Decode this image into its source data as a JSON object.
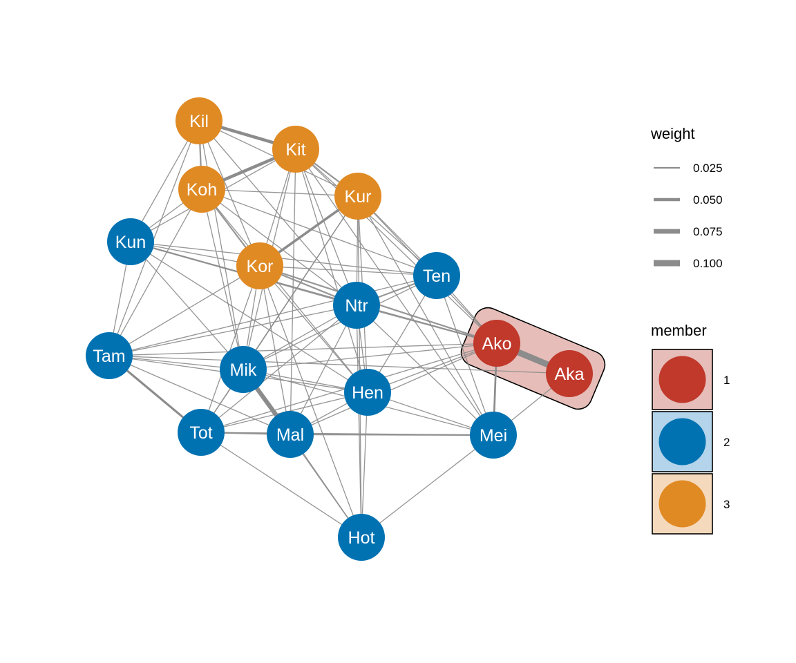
{
  "colors": {
    "community_1": "#C0392B",
    "community_2": "#0072B2",
    "community_3": "#E08A24",
    "hull_fill_1": "#E6BDB8",
    "hull_fill_2": "#B3D4EA",
    "hull_fill_3": "#F5D9BC",
    "edge": "#8C8C8C",
    "node_text": "#FFFFFF"
  },
  "nodes": [
    {
      "id": "Kil",
      "label": "Kil",
      "member": 3
    },
    {
      "id": "Kit",
      "label": "Kit",
      "member": 3
    },
    {
      "id": "Koh",
      "label": "Koh",
      "member": 3
    },
    {
      "id": "Kur",
      "label": "Kur",
      "member": 3
    },
    {
      "id": "Kun",
      "label": "Kun",
      "member": 2
    },
    {
      "id": "Kor",
      "label": "Kor",
      "member": 3
    },
    {
      "id": "Ten",
      "label": "Ten",
      "member": 2
    },
    {
      "id": "Ntr",
      "label": "Ntr",
      "member": 2
    },
    {
      "id": "Ako",
      "label": "Ako",
      "member": 1
    },
    {
      "id": "Aka",
      "label": "Aka",
      "member": 1
    },
    {
      "id": "Tam",
      "label": "Tam",
      "member": 2
    },
    {
      "id": "Mik",
      "label": "Mik",
      "member": 2
    },
    {
      "id": "Hen",
      "label": "Hen",
      "member": 2
    },
    {
      "id": "Tot",
      "label": "Tot",
      "member": 2
    },
    {
      "id": "Mal",
      "label": "Mal",
      "member": 2
    },
    {
      "id": "Mei",
      "label": "Mei",
      "member": 2
    },
    {
      "id": "Hot",
      "label": "Hot",
      "member": 2
    }
  ],
  "edges": [
    {
      "source": "Kil",
      "target": "Kit",
      "weight": 0.05
    },
    {
      "source": "Kil",
      "target": "Koh",
      "weight": 0.025
    },
    {
      "source": "Kil",
      "target": "Kun",
      "weight": 0.015
    },
    {
      "source": "Kil",
      "target": "Kor",
      "weight": 0.015
    },
    {
      "source": "Kil",
      "target": "Kur",
      "weight": 0.015
    },
    {
      "source": "Kil",
      "target": "Ntr",
      "weight": 0.015
    },
    {
      "source": "Kil",
      "target": "Tam",
      "weight": 0.015
    },
    {
      "source": "Kil",
      "target": "Mik",
      "weight": 0.015
    },
    {
      "source": "Kit",
      "target": "Koh",
      "weight": 0.05
    },
    {
      "source": "Kit",
      "target": "Kur",
      "weight": 0.025
    },
    {
      "source": "Kit",
      "target": "Kor",
      "weight": 0.015
    },
    {
      "source": "Kit",
      "target": "Kun",
      "weight": 0.015
    },
    {
      "source": "Kit",
      "target": "Ntr",
      "weight": 0.015
    },
    {
      "source": "Kit",
      "target": "Ten",
      "weight": 0.015
    },
    {
      "source": "Kit",
      "target": "Hen",
      "weight": 0.015
    },
    {
      "source": "Kit",
      "target": "Mik",
      "weight": 0.015
    },
    {
      "source": "Kit",
      "target": "Mal",
      "weight": 0.015
    },
    {
      "source": "Kit",
      "target": "Mei",
      "weight": 0.015
    },
    {
      "source": "Kit",
      "target": "Ako",
      "weight": 0.015
    },
    {
      "source": "Koh",
      "target": "Kun",
      "weight": 0.015
    },
    {
      "source": "Koh",
      "target": "Kor",
      "weight": 0.025
    },
    {
      "source": "Koh",
      "target": "Kur",
      "weight": 0.015
    },
    {
      "source": "Koh",
      "target": "Ntr",
      "weight": 0.015
    },
    {
      "source": "Koh",
      "target": "Mik",
      "weight": 0.015
    },
    {
      "source": "Koh",
      "target": "Hen",
      "weight": 0.015
    },
    {
      "source": "Koh",
      "target": "Ten",
      "weight": 0.015
    },
    {
      "source": "Koh",
      "target": "Tam",
      "weight": 0.015
    },
    {
      "source": "Kur",
      "target": "Kor",
      "weight": 0.04
    },
    {
      "source": "Kur",
      "target": "Ten",
      "weight": 0.015
    },
    {
      "source": "Kur",
      "target": "Ntr",
      "weight": 0.015
    },
    {
      "source": "Kur",
      "target": "Hen",
      "weight": 0.015
    },
    {
      "source": "Kur",
      "target": "Mik",
      "weight": 0.015
    },
    {
      "source": "Kur",
      "target": "Mei",
      "weight": 0.015
    },
    {
      "source": "Kur",
      "target": "Tot",
      "weight": 0.015
    },
    {
      "source": "Kur",
      "target": "Ako",
      "weight": 0.015
    },
    {
      "source": "Kur",
      "target": "Hot",
      "weight": 0.015
    },
    {
      "source": "Kun",
      "target": "Kor",
      "weight": 0.015
    },
    {
      "source": "Kun",
      "target": "Ntr",
      "weight": 0.025
    },
    {
      "source": "Kun",
      "target": "Ten",
      "weight": 0.015
    },
    {
      "source": "Kun",
      "target": "Tam",
      "weight": 0.015
    },
    {
      "source": "Kun",
      "target": "Mik",
      "weight": 0.015
    },
    {
      "source": "Kun",
      "target": "Hen",
      "weight": 0.015
    },
    {
      "source": "Kun",
      "target": "Ako",
      "weight": 0.015
    },
    {
      "source": "Kor",
      "target": "Ntr",
      "weight": 0.025
    },
    {
      "source": "Kor",
      "target": "Ten",
      "weight": 0.015
    },
    {
      "source": "Kor",
      "target": "Tam",
      "weight": 0.015
    },
    {
      "source": "Kor",
      "target": "Mik",
      "weight": 0.015
    },
    {
      "source": "Kor",
      "target": "Hen",
      "weight": 0.015
    },
    {
      "source": "Kor",
      "target": "Mal",
      "weight": 0.015
    },
    {
      "source": "Kor",
      "target": "Ako",
      "weight": 0.025
    },
    {
      "source": "Kor",
      "target": "Tot",
      "weight": 0.015
    },
    {
      "source": "Kor",
      "target": "Hot",
      "weight": 0.015
    },
    {
      "source": "Ten",
      "target": "Ntr",
      "weight": 0.025
    },
    {
      "source": "Ten",
      "target": "Mik",
      "weight": 0.015
    },
    {
      "source": "Ten",
      "target": "Hen",
      "weight": 0.015
    },
    {
      "source": "Ten",
      "target": "Mei",
      "weight": 0.015
    },
    {
      "source": "Ten",
      "target": "Ako",
      "weight": 0.015
    },
    {
      "source": "Ten",
      "target": "Tam",
      "weight": 0.015
    },
    {
      "source": "Ntr",
      "target": "Ako",
      "weight": 0.025
    },
    {
      "source": "Ntr",
      "target": "Hen",
      "weight": 0.015
    },
    {
      "source": "Ntr",
      "target": "Mik",
      "weight": 0.015
    },
    {
      "source": "Ntr",
      "target": "Mal",
      "weight": 0.015
    },
    {
      "source": "Ntr",
      "target": "Tot",
      "weight": 0.015
    },
    {
      "source": "Ntr",
      "target": "Mei",
      "weight": 0.015
    },
    {
      "source": "Ntr",
      "target": "Tam",
      "weight": 0.015
    },
    {
      "source": "Ntr",
      "target": "Hot",
      "weight": 0.015
    },
    {
      "source": "Ako",
      "target": "Aka",
      "weight": 0.1
    },
    {
      "source": "Ako",
      "target": "Mei",
      "weight": 0.03
    },
    {
      "source": "Ako",
      "target": "Tam",
      "weight": 0.015
    },
    {
      "source": "Ako",
      "target": "Mik",
      "weight": 0.015
    },
    {
      "source": "Ako",
      "target": "Hen",
      "weight": 0.015
    },
    {
      "source": "Ako",
      "target": "Tot",
      "weight": 0.015
    },
    {
      "source": "Ako",
      "target": "Mal",
      "weight": 0.015
    },
    {
      "source": "Aka",
      "target": "Mei",
      "weight": 0.015
    },
    {
      "source": "Aka",
      "target": "Tam",
      "weight": 0.015
    },
    {
      "source": "Tam",
      "target": "Tot",
      "weight": 0.035
    },
    {
      "source": "Tam",
      "target": "Mik",
      "weight": 0.015
    },
    {
      "source": "Tam",
      "target": "Hen",
      "weight": 0.015
    },
    {
      "source": "Tam",
      "target": "Mal",
      "weight": 0.015
    },
    {
      "source": "Mik",
      "target": "Mal",
      "weight": 0.07
    },
    {
      "source": "Mik",
      "target": "Hen",
      "weight": 0.015
    },
    {
      "source": "Mik",
      "target": "Tot",
      "weight": 0.015
    },
    {
      "source": "Mik",
      "target": "Hot",
      "weight": 0.015
    },
    {
      "source": "Mik",
      "target": "Mei",
      "weight": 0.015
    },
    {
      "source": "Hen",
      "target": "Tot",
      "weight": 0.015
    },
    {
      "source": "Hen",
      "target": "Mal",
      "weight": 0.015
    },
    {
      "source": "Hen",
      "target": "Mei",
      "weight": 0.015
    },
    {
      "source": "Hen",
      "target": "Hot",
      "weight": 0.015
    },
    {
      "source": "Tot",
      "target": "Mal",
      "weight": 0.025
    },
    {
      "source": "Tot",
      "target": "Hot",
      "weight": 0.015
    },
    {
      "source": "Tot",
      "target": "Mei",
      "weight": 0.015
    },
    {
      "source": "Mal",
      "target": "Mei",
      "weight": 0.025
    },
    {
      "source": "Mal",
      "target": "Hot",
      "weight": 0.015
    },
    {
      "source": "Mei",
      "target": "Hot",
      "weight": 0.015
    }
  ],
  "legend": {
    "weight_title": "weight",
    "weight_items": [
      {
        "label": "0.025",
        "weight": 0.025
      },
      {
        "label": "0.050",
        "weight": 0.05
      },
      {
        "label": "0.075",
        "weight": 0.075
      },
      {
        "label": "0.100",
        "weight": 0.1
      }
    ],
    "member_title": "member",
    "member_items": [
      {
        "label": "1",
        "member": 1
      },
      {
        "label": "2",
        "member": 2
      },
      {
        "label": "3",
        "member": 3
      }
    ]
  }
}
